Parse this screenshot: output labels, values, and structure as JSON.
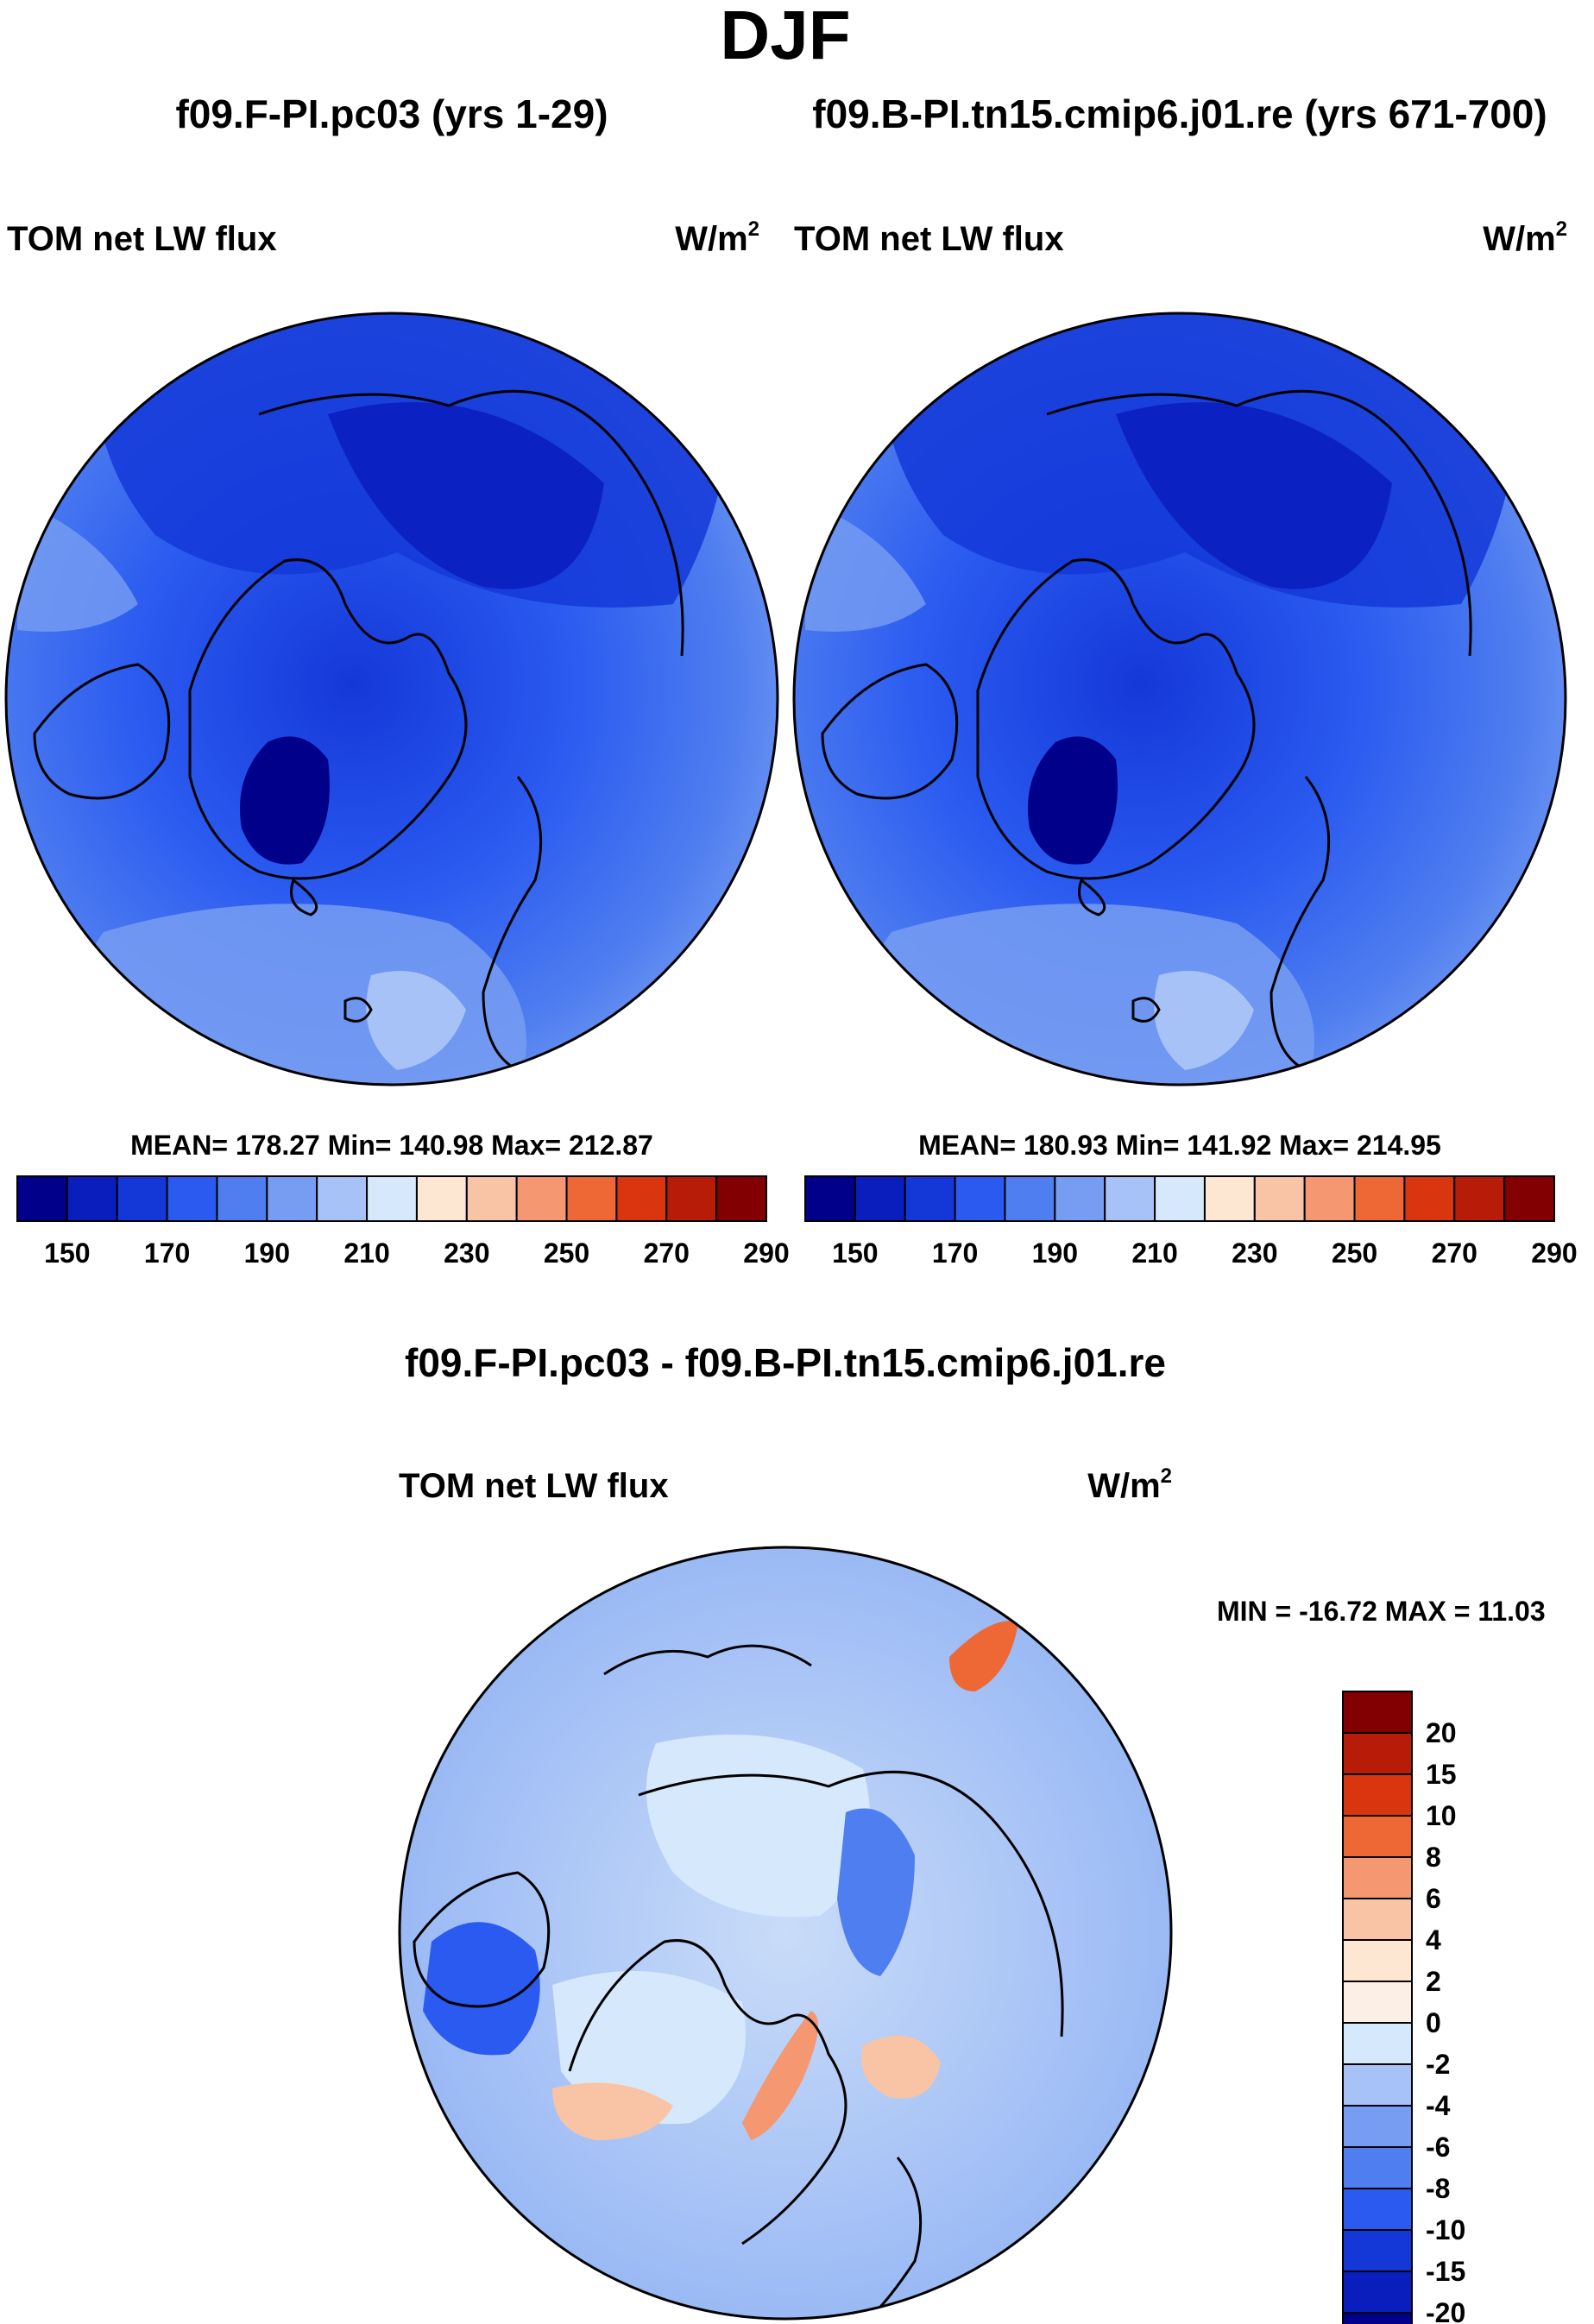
{
  "season": "DJF",
  "panels": {
    "left": {
      "run_title": "f09.F-PI.pc03 (yrs 1-29)",
      "var_label": "TOM net LW flux",
      "units_base": "W/m",
      "units_exp": "2",
      "stats": "MEAN= 178.27  Min= 140.98  Max= 212.87"
    },
    "right": {
      "run_title": "f09.B-PI.tn15.cmip6.j01.re (yrs 671-700)",
      "var_label": "TOM net LW flux",
      "units_base": "W/m",
      "units_exp": "2",
      "stats": "MEAN= 180.93  Min= 141.92  Max= 214.95"
    },
    "diff": {
      "run_title": "f09.F-PI.pc03 - f09.B-PI.tn15.cmip6.j01.re",
      "var_label": "TOM net LW flux",
      "units_base": "W/m",
      "units_exp": "2",
      "stats": "MIN = -16.72 MAX =  11.03"
    }
  },
  "chart_data": [
    {
      "type": "heatmap",
      "projection": "north-polar-stereographic",
      "title": "f09.F-PI.pc03 (yrs 1-29)",
      "variable": "TOM net LW flux",
      "units": "W/m2",
      "stats": {
        "mean": 178.27,
        "min": 140.98,
        "max": 212.87
      },
      "colorbar": {
        "orientation": "horizontal",
        "boundaries": [
          150,
          160,
          170,
          180,
          190,
          200,
          210,
          220,
          230,
          240,
          250,
          260,
          270,
          280,
          290
        ],
        "tick_labels": [
          "150",
          "170",
          "190",
          "210",
          "230",
          "250",
          "270",
          "290"
        ],
        "colors": [
          "#00008a",
          "#0a1ebe",
          "#1438d8",
          "#2a5af0",
          "#4f7ef0",
          "#779df2",
          "#a6c2f6",
          "#d6e8fb",
          "#fde6d2",
          "#f9c4a6",
          "#f59770",
          "#ee6836",
          "#d9360f",
          "#b61c08",
          "#820002"
        ]
      }
    },
    {
      "type": "heatmap",
      "projection": "north-polar-stereographic",
      "title": "f09.B-PI.tn15.cmip6.j01.re (yrs 671-700)",
      "variable": "TOM net LW flux",
      "units": "W/m2",
      "stats": {
        "mean": 180.93,
        "min": 141.92,
        "max": 214.95
      },
      "colorbar": {
        "orientation": "horizontal",
        "boundaries": [
          150,
          160,
          170,
          180,
          190,
          200,
          210,
          220,
          230,
          240,
          250,
          260,
          270,
          280,
          290
        ],
        "tick_labels": [
          "150",
          "170",
          "190",
          "210",
          "230",
          "250",
          "270",
          "290"
        ],
        "colors": [
          "#00008a",
          "#0a1ebe",
          "#1438d8",
          "#2a5af0",
          "#4f7ef0",
          "#779df2",
          "#a6c2f6",
          "#d6e8fb",
          "#fde6d2",
          "#f9c4a6",
          "#f59770",
          "#ee6836",
          "#d9360f",
          "#b61c08",
          "#820002"
        ]
      }
    },
    {
      "type": "heatmap",
      "projection": "north-polar-stereographic",
      "title": "f09.F-PI.pc03 - f09.B-PI.tn15.cmip6.j01.re",
      "variable": "TOM net LW flux",
      "units": "W/m2",
      "stats": {
        "min": -16.72,
        "max": 11.03
      },
      "colorbar": {
        "orientation": "vertical",
        "tick_labels": [
          "20",
          "15",
          "10",
          "8",
          "6",
          "4",
          "2",
          "0",
          "-2",
          "-4",
          "-6",
          "-8",
          "-10",
          "-15",
          "-20"
        ],
        "colors": [
          "#820002",
          "#b61c08",
          "#d9360f",
          "#ee6836",
          "#f59770",
          "#f9c4a6",
          "#fde6d2",
          "#fcf0e6",
          "#d6e8fb",
          "#a6c2f6",
          "#779df2",
          "#4f7ef0",
          "#2a5af0",
          "#1438d8",
          "#0a1ebe",
          "#00008a"
        ]
      }
    }
  ]
}
